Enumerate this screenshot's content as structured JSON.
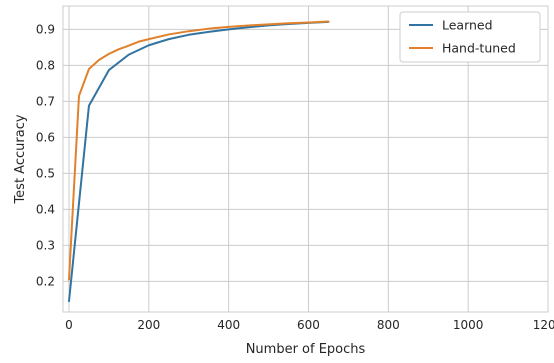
{
  "chart_data": {
    "type": "line",
    "title": "",
    "xlabel": "Number of Epochs",
    "ylabel": "Test Accuracy",
    "xlim": [
      -15,
      1200
    ],
    "ylim": [
      0.115,
      0.965
    ],
    "xticks": [
      0,
      200,
      400,
      600,
      800,
      1000,
      1200
    ],
    "yticks": [
      0.2,
      0.3,
      0.4,
      0.5,
      0.6,
      0.7,
      0.8,
      0.9
    ],
    "grid": true,
    "legend_position": "top-right",
    "series": [
      {
        "name": "Learned",
        "color": "#3274a1",
        "x": [
          0,
          50,
          100,
          150,
          200,
          250,
          300,
          350,
          400,
          450,
          500,
          550,
          600,
          650
        ],
        "y": [
          0.145,
          0.688,
          0.787,
          0.83,
          0.856,
          0.873,
          0.885,
          0.893,
          0.9,
          0.906,
          0.911,
          0.915,
          0.918,
          0.921
        ]
      },
      {
        "name": "Hand-tuned",
        "color": "#e1812c",
        "x": [
          0,
          25,
          50,
          75,
          100,
          125,
          150,
          175,
          200,
          250,
          300,
          350,
          400,
          450,
          500,
          550,
          600,
          650
        ],
        "y": [
          0.205,
          0.715,
          0.79,
          0.815,
          0.832,
          0.845,
          0.855,
          0.866,
          0.873,
          0.886,
          0.895,
          0.902,
          0.907,
          0.911,
          0.914,
          0.917,
          0.919,
          0.922
        ]
      }
    ]
  }
}
